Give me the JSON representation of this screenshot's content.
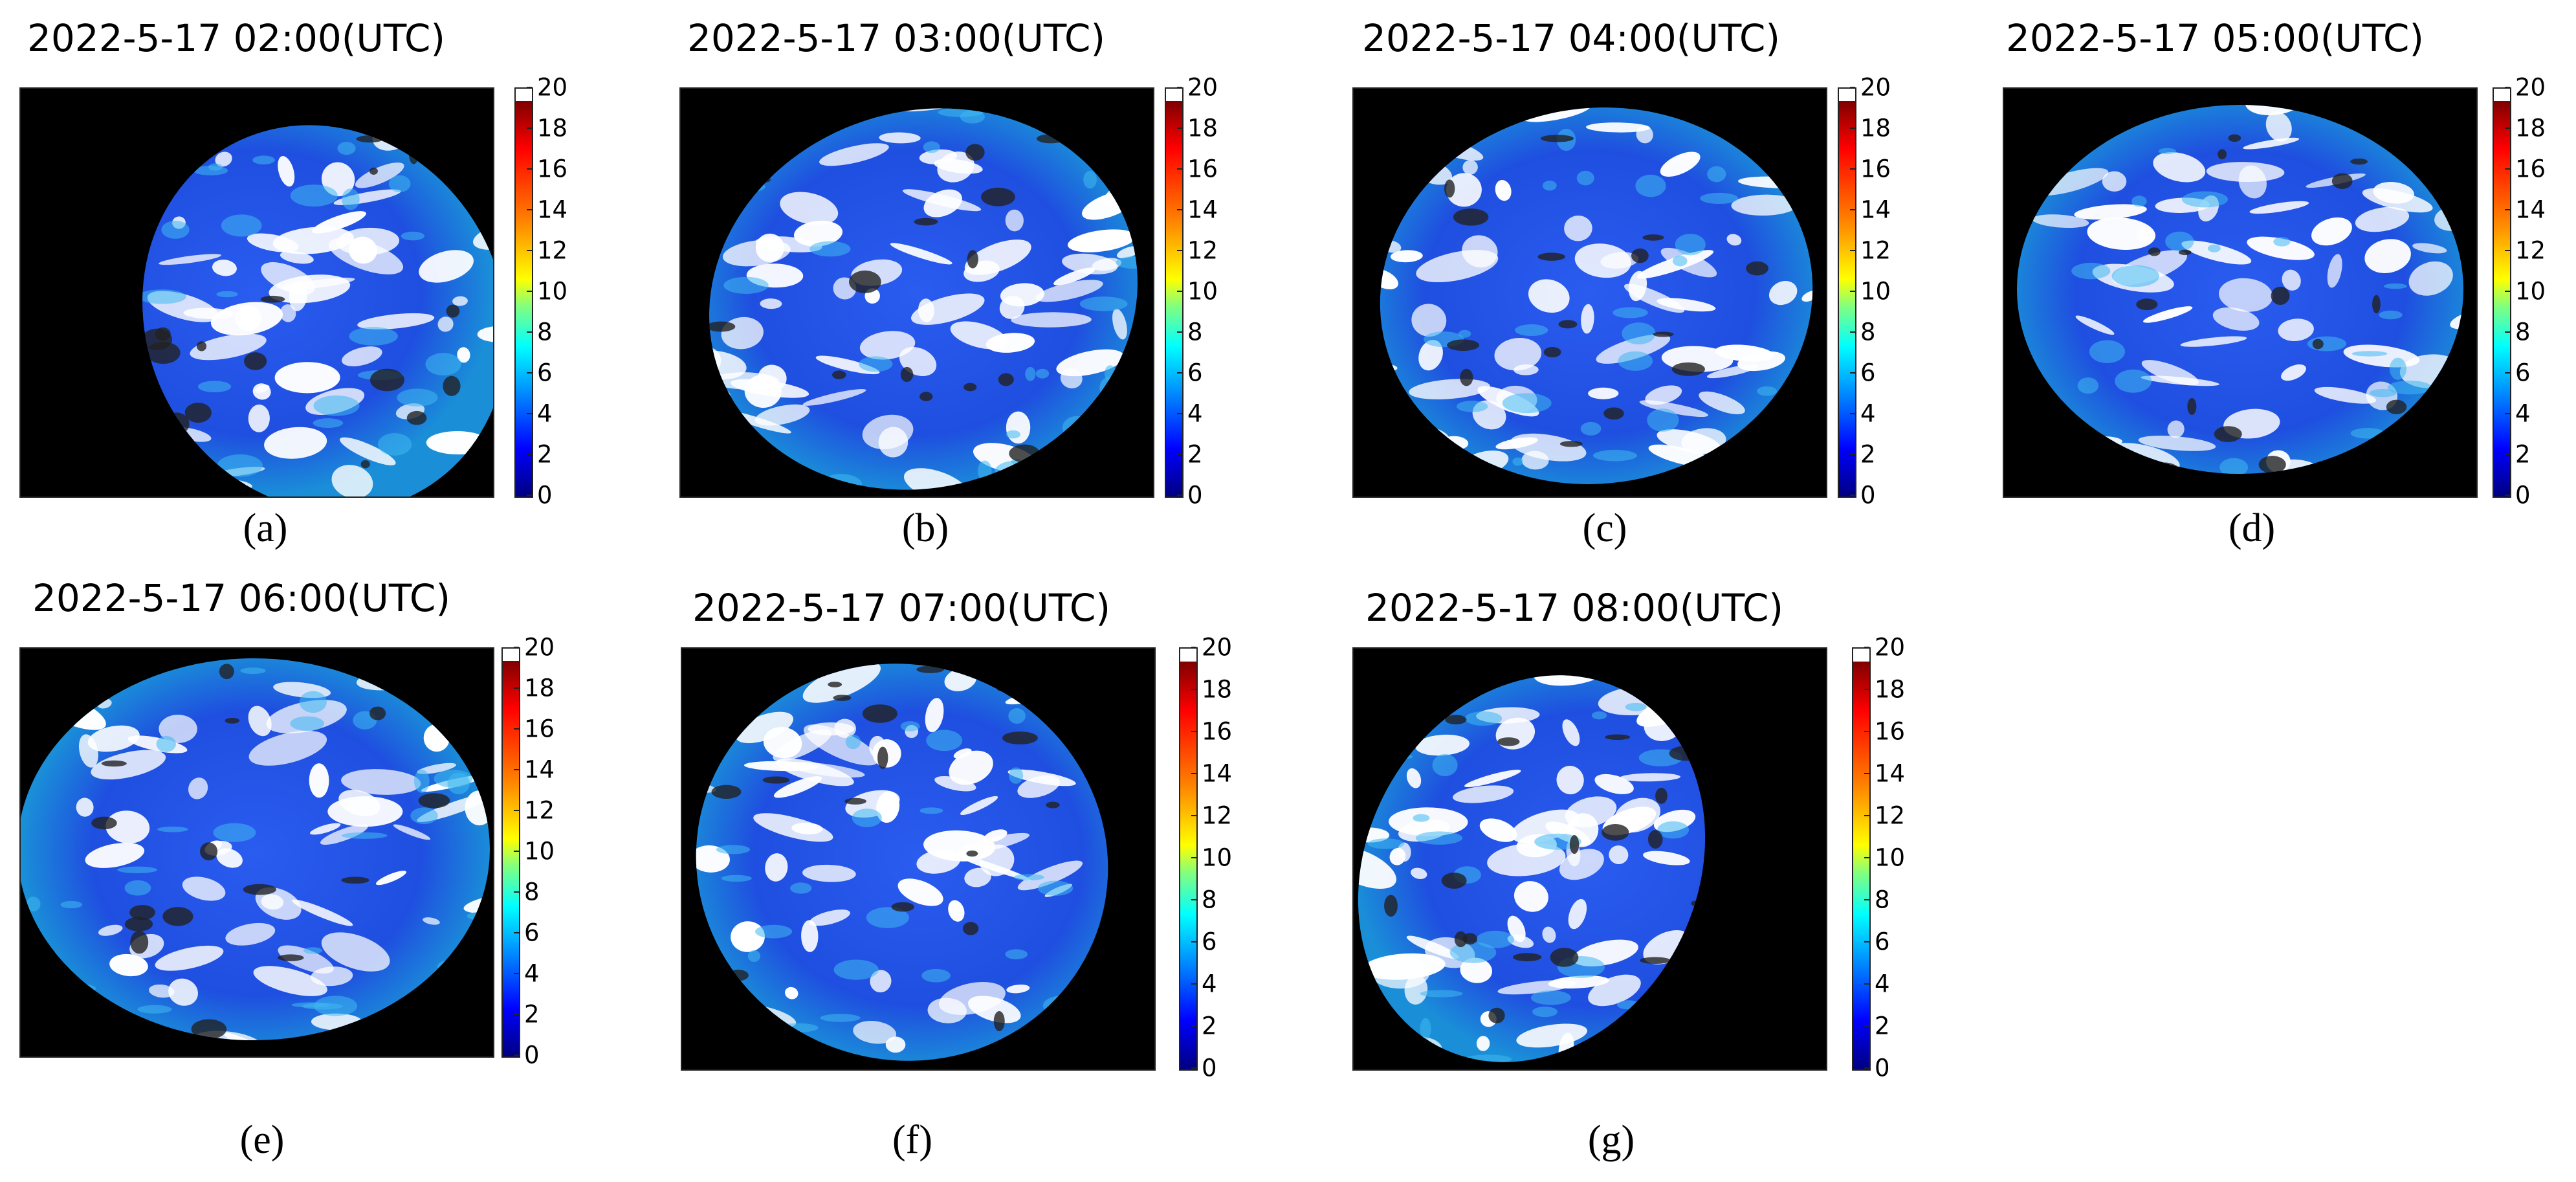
{
  "colors": {
    "space": "#000000",
    "ocean_blue": "#1f4fe0",
    "cloud_white": "#ffffff",
    "cmap_max": "#7f0000",
    "cmap_min": "#00007f"
  },
  "colorbar": {
    "ticks": [
      "20",
      "18",
      "16",
      "14",
      "12",
      "10",
      "8",
      "6",
      "4",
      "2",
      "0"
    ],
    "min": 0,
    "max": 20
  },
  "panels": [
    {
      "id": "a",
      "title": "2022-5-17 02:00(UTC)",
      "label": "(a)",
      "visible_portion": "disk clipped on the left"
    },
    {
      "id": "b",
      "title": "2022-5-17 03:00(UTC)",
      "label": "(b)",
      "visible_portion": "full disk"
    },
    {
      "id": "c",
      "title": "2022-5-17 04:00(UTC)",
      "label": "(c)",
      "visible_portion": "full disk"
    },
    {
      "id": "d",
      "title": "2022-5-17 05:00(UTC)",
      "label": "(d)",
      "visible_portion": "full disk"
    },
    {
      "id": "e",
      "title": "2022-5-17 06:00(UTC)",
      "label": "(e)",
      "visible_portion": "full disk"
    },
    {
      "id": "f",
      "title": "2022-5-17 07:00(UTC)",
      "label": "(f)",
      "visible_portion": "disk clipped on the right"
    },
    {
      "id": "g",
      "title": "2022-5-17 08:00(UTC)",
      "label": "(g)",
      "visible_portion": "disk clipped on the right"
    }
  ]
}
